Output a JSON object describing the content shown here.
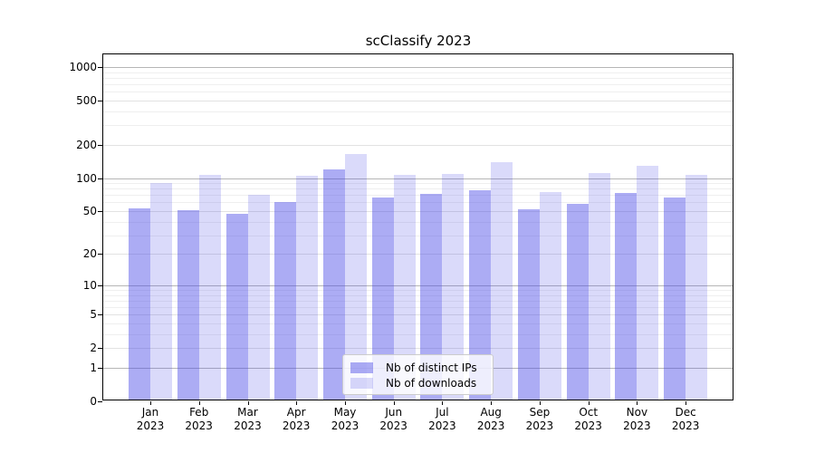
{
  "chart_data": {
    "type": "bar",
    "title": "scClassify 2023",
    "months": [
      "Jan",
      "Feb",
      "Mar",
      "Apr",
      "May",
      "Jun",
      "Jul",
      "Aug",
      "Sep",
      "Oct",
      "Nov",
      "Dec"
    ],
    "year": "2023",
    "series": [
      {
        "name": "Nb of distinct IPs",
        "color": "rgba(70,72,230,0.45)",
        "values": [
          53,
          51,
          47,
          61,
          119,
          66,
          72,
          77,
          52,
          58,
          73,
          67
        ]
      },
      {
        "name": "Nb of downloads",
        "color": "rgba(70,72,230,0.2)",
        "values": [
          91,
          107,
          71,
          104,
          165,
          107,
          108,
          139,
          74,
          112,
          130,
          107
        ]
      }
    ],
    "yscale": "log1p",
    "yticks": [
      0,
      1,
      2,
      5,
      10,
      20,
      50,
      100,
      200,
      500,
      1000
    ],
    "ytick_labels": [
      "0",
      "1",
      "2",
      "5",
      "10",
      "20",
      "50",
      "100",
      "200",
      "500",
      "1000"
    ],
    "ylim": [
      0,
      1320
    ],
    "grid": true,
    "legend_position": "lower center"
  }
}
